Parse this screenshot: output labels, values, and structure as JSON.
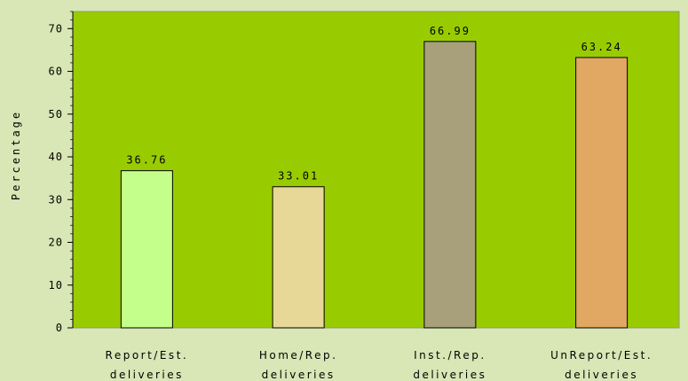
{
  "chart_data": {
    "type": "bar",
    "categories": [
      [
        "Report/Est.",
        "deliveries"
      ],
      [
        "Home/Rep.",
        "deliveries"
      ],
      [
        "Inst./Rep.",
        "deliveries"
      ],
      [
        "UnReport/Est.",
        "deliveries"
      ]
    ],
    "values": [
      36.76,
      33.01,
      66.99,
      63.24
    ],
    "value_labels": [
      "36.76",
      "33.01",
      "66.99",
      "63.24"
    ],
    "bar_colors": [
      "#c4ff8c",
      "#e8d898",
      "#a8a07a",
      "#e0a862"
    ],
    "title": "",
    "xlabel": "",
    "ylabel": "Percentage",
    "ylim": [
      0,
      74
    ],
    "yticks": [
      0,
      10,
      20,
      30,
      40,
      50,
      60,
      70
    ],
    "grid": false,
    "legend": "none",
    "colors": {
      "page_background": "#d9e6b5",
      "plot_background": "#99cc00",
      "bar_outline": "#000000",
      "frame": "#8a9a70"
    }
  }
}
